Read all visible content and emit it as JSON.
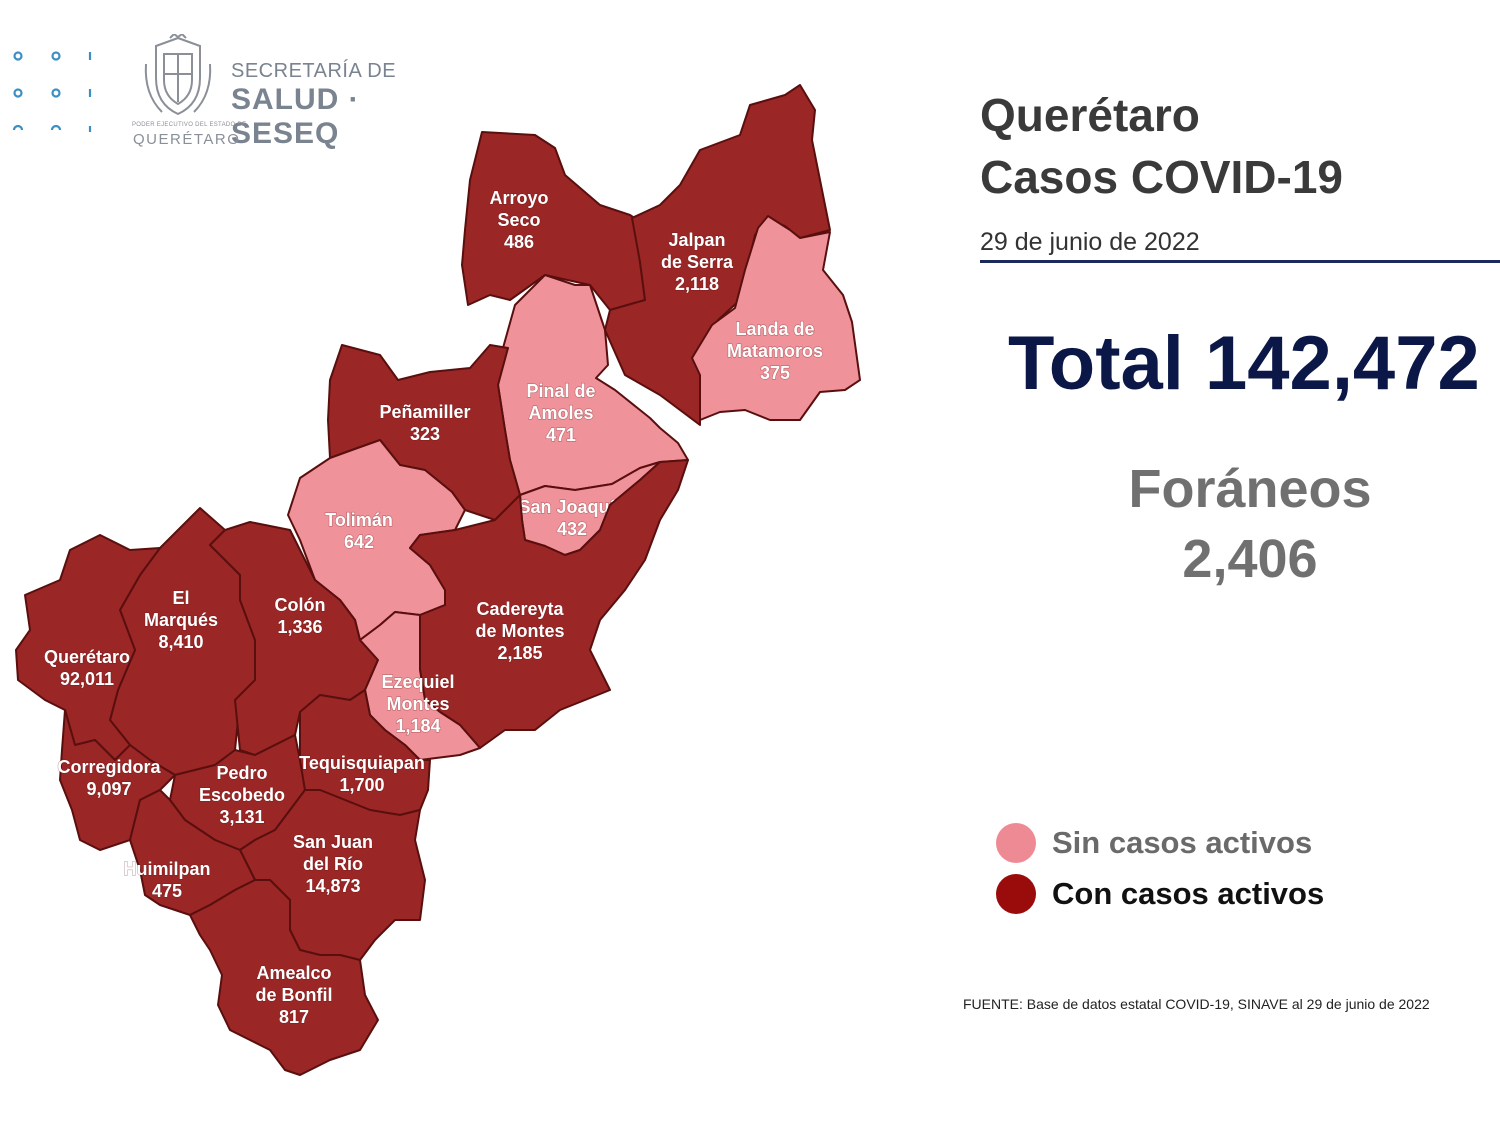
{
  "header": {
    "org_line1": "SECRETARÍA DE",
    "org_line2": "SALUD · SESEQ",
    "gov_small": "PODER EJECUTIVO DEL ESTADO DE",
    "gov_city": "QUERÉTARO"
  },
  "title": {
    "line1": "Querétaro",
    "line2": "Casos COVID-19",
    "date": "29 de junio de 2022"
  },
  "totals": {
    "total": "Total 142,472",
    "foraneos_label": "Foráneos",
    "foraneos_value": "2,406"
  },
  "legend": [
    {
      "label": "Sin casos activos",
      "color": "#ee8a94",
      "text_color": "#6a6a6a"
    },
    {
      "label": "Con casos activos",
      "color": "#9a0c0c",
      "text_color": "#111111"
    }
  ],
  "colors": {
    "active": "#9b2626",
    "no_active": "#f0929a",
    "border": "#5a0f0f",
    "title_navy": "#0b1847"
  },
  "source": "FUENTE: Base de datos estatal COVID-19, SINAVE al 29 de junio de 2022",
  "municipalities": [
    {
      "id": "arroyo-seco",
      "lines": [
        "Arroyo",
        "Seco"
      ],
      "cases": "486",
      "active": true
    },
    {
      "id": "jalpan",
      "lines": [
        "Jalpan",
        "de Serra"
      ],
      "cases": "2,118",
      "active": true
    },
    {
      "id": "landa",
      "lines": [
        "Landa de",
        "Matamoros"
      ],
      "cases": "375",
      "active": false
    },
    {
      "id": "pinal",
      "lines": [
        "Pinal de",
        "Amoles"
      ],
      "cases": "471",
      "active": false
    },
    {
      "id": "penamiller",
      "lines": [
        "Peñamiller"
      ],
      "cases": "323",
      "active": true
    },
    {
      "id": "san-joaquin",
      "lines": [
        "San Joaquín"
      ],
      "cases": "432",
      "active": false
    },
    {
      "id": "toliman",
      "lines": [
        "Tolimán"
      ],
      "cases": "642",
      "active": false
    },
    {
      "id": "cadereyta",
      "lines": [
        "Cadereyta",
        "de Montes"
      ],
      "cases": "2,185",
      "active": true
    },
    {
      "id": "el-marques",
      "lines": [
        "El",
        "Marqués"
      ],
      "cases": "8,410",
      "active": true
    },
    {
      "id": "colon",
      "lines": [
        "Colón"
      ],
      "cases": "1,336",
      "active": true
    },
    {
      "id": "queretaro",
      "lines": [
        "Querétaro"
      ],
      "cases": "92,011",
      "active": true
    },
    {
      "id": "ezequiel",
      "lines": [
        "Ezequiel",
        "Montes"
      ],
      "cases": "1,184",
      "active": false
    },
    {
      "id": "corregidora",
      "lines": [
        "Corregidora"
      ],
      "cases": "9,097",
      "active": true
    },
    {
      "id": "pedro-escobedo",
      "lines": [
        "Pedro",
        "Escobedo"
      ],
      "cases": "3,131",
      "active": true
    },
    {
      "id": "tequisquiapan",
      "lines": [
        "Tequisquiapan"
      ],
      "cases": "1,700",
      "active": true
    },
    {
      "id": "san-juan",
      "lines": [
        "San Juan",
        "del Río"
      ],
      "cases": "14,873",
      "active": true
    },
    {
      "id": "huimilpan",
      "lines": [
        "Huimilpan"
      ],
      "cases": "475",
      "active": true
    },
    {
      "id": "amealco",
      "lines": [
        "Amealco",
        "de Bonfil"
      ],
      "cases": "817",
      "active": true
    }
  ]
}
